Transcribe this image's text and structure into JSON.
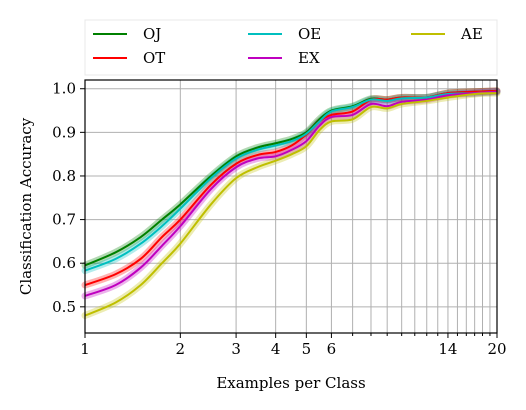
{
  "chart_data": {
    "type": "line",
    "title": "",
    "xlabel": "Examples per Class",
    "ylabel": "Classification Accuracy",
    "xscale": "log",
    "xlim": [
      1,
      20
    ],
    "ylim": [
      0.44,
      1.02
    ],
    "grid": true,
    "legend_position": "top",
    "xticks": [
      1,
      2,
      3,
      4,
      5,
      6,
      14,
      20
    ],
    "xtick_labels": [
      "1",
      "2",
      "3",
      "4",
      "5",
      "6",
      "14",
      "20"
    ],
    "x_minor_grid": [
      7,
      8,
      9,
      10,
      11,
      12,
      13,
      15,
      16,
      17,
      18,
      19
    ],
    "yticks": [
      0.5,
      0.6,
      0.7,
      0.8,
      0.9,
      1.0
    ],
    "ytick_labels": [
      "0.5",
      "0.6",
      "0.7",
      "0.8",
      "0.9",
      "1.0"
    ],
    "series": [
      {
        "name": "OJ",
        "color": "#008000",
        "x": [
          1,
          1.25,
          1.5,
          1.75,
          2,
          2.5,
          3,
          3.5,
          4,
          4.5,
          5,
          5.5,
          6,
          7,
          8,
          9,
          10,
          12,
          14,
          17,
          20
        ],
        "y": [
          0.595,
          0.625,
          0.66,
          0.7,
          0.735,
          0.8,
          0.845,
          0.865,
          0.875,
          0.885,
          0.9,
          0.93,
          0.95,
          0.96,
          0.977,
          0.975,
          0.98,
          0.98,
          0.99,
          0.993,
          0.995
        ]
      },
      {
        "name": "OT",
        "color": "#ff0000",
        "x": [
          1,
          1.25,
          1.5,
          1.75,
          2,
          2.5,
          3,
          3.5,
          4,
          4.5,
          5,
          5.5,
          6,
          7,
          8,
          9,
          10,
          12,
          14,
          17,
          20
        ],
        "y": [
          0.55,
          0.575,
          0.61,
          0.66,
          0.7,
          0.78,
          0.828,
          0.848,
          0.855,
          0.87,
          0.895,
          0.925,
          0.94,
          0.948,
          0.975,
          0.975,
          0.98,
          0.98,
          0.99,
          0.993,
          0.995
        ]
      },
      {
        "name": "OE",
        "color": "#00bfbf",
        "x": [
          1,
          1.25,
          1.5,
          1.75,
          2,
          2.5,
          3,
          3.5,
          4,
          4.5,
          5,
          5.5,
          6,
          7,
          8,
          9,
          10,
          12,
          14,
          17,
          20
        ],
        "y": [
          0.583,
          0.61,
          0.645,
          0.685,
          0.725,
          0.795,
          0.84,
          0.86,
          0.87,
          0.88,
          0.897,
          0.925,
          0.948,
          0.958,
          0.975,
          0.972,
          0.978,
          0.98,
          0.988,
          0.99,
          0.993
        ]
      },
      {
        "name": "EX",
        "color": "#bf00bf",
        "x": [
          1,
          1.25,
          1.5,
          1.75,
          2,
          2.5,
          3,
          3.5,
          4,
          4.5,
          5,
          5.5,
          6,
          7,
          8,
          9,
          10,
          12,
          14,
          17,
          20
        ],
        "y": [
          0.525,
          0.55,
          0.59,
          0.64,
          0.685,
          0.77,
          0.82,
          0.84,
          0.845,
          0.86,
          0.88,
          0.915,
          0.935,
          0.94,
          0.965,
          0.96,
          0.97,
          0.975,
          0.985,
          0.99,
          0.993
        ]
      },
      {
        "name": "AE",
        "color": "#bfbf00",
        "x": [
          1,
          1.25,
          1.5,
          1.75,
          2,
          2.5,
          3,
          3.5,
          4,
          4.5,
          5,
          5.5,
          6,
          7,
          8,
          9,
          10,
          12,
          14,
          17,
          20
        ],
        "y": [
          0.48,
          0.51,
          0.55,
          0.6,
          0.645,
          0.735,
          0.795,
          0.82,
          0.835,
          0.85,
          0.868,
          0.905,
          0.925,
          0.93,
          0.958,
          0.955,
          0.965,
          0.972,
          0.98,
          0.988,
          0.99
        ]
      }
    ]
  }
}
